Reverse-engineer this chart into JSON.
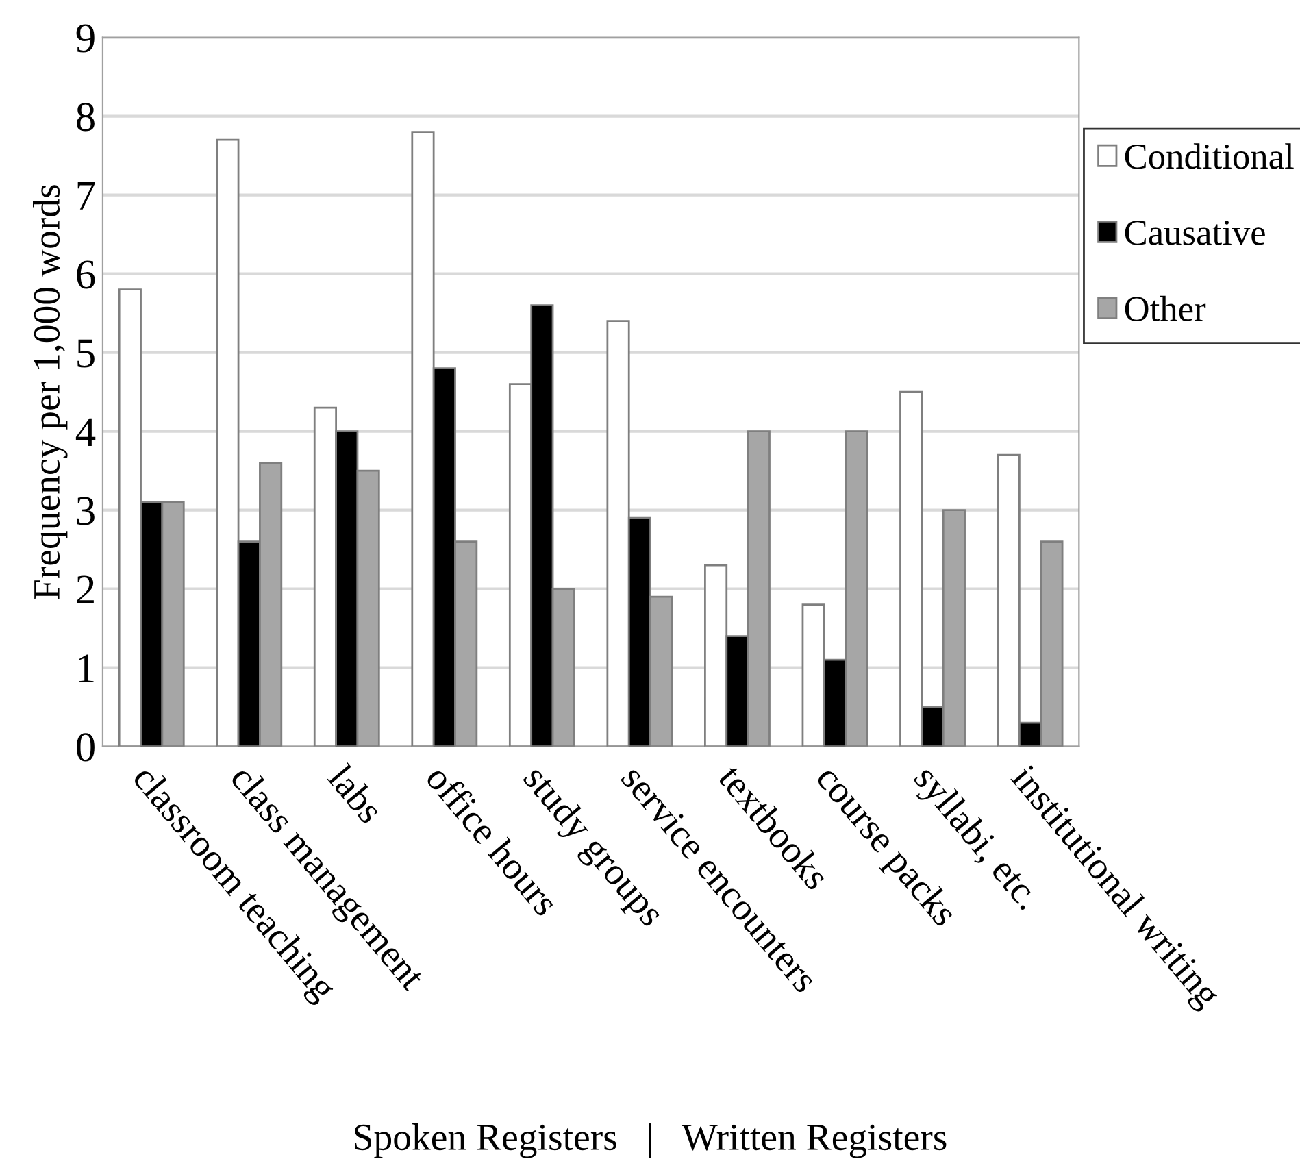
{
  "chart_data": {
    "type": "bar",
    "ylabel": "Frequency per 1,000 words",
    "categories": [
      "classroom teaching",
      "class management",
      "labs",
      "office hours",
      "study groups",
      "service encounters",
      "textbooks",
      "course packs",
      "syllabi, etc.",
      "institutional writing"
    ],
    "series": [
      {
        "name": "Conditional",
        "color": "#ffffff",
        "values": [
          5.8,
          7.7,
          4.3,
          7.8,
          4.6,
          5.4,
          2.3,
          1.8,
          4.5,
          3.7
        ]
      },
      {
        "name": "Causative",
        "color": "#000000",
        "values": [
          3.1,
          2.6,
          4.0,
          4.8,
          5.6,
          2.9,
          1.4,
          1.1,
          0.5,
          0.3
        ]
      },
      {
        "name": "Other",
        "color": "#a6a6a6",
        "values": [
          3.1,
          3.6,
          3.5,
          2.6,
          2.0,
          1.9,
          4.0,
          4.0,
          3.0,
          2.6
        ]
      }
    ],
    "ylim": [
      0,
      9
    ],
    "yticks": [
      0,
      1,
      2,
      3,
      4,
      5,
      6,
      7,
      8,
      9
    ],
    "grid": "y",
    "legend": "right",
    "annotations": [
      "Spoken Registers   |   Written Registers"
    ]
  }
}
